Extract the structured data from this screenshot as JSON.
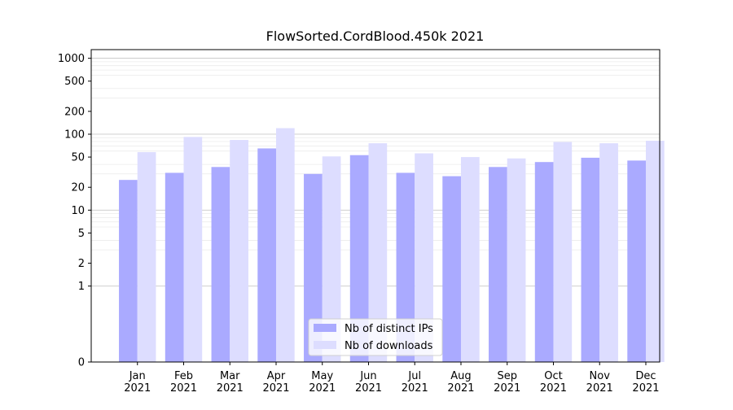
{
  "chart_data": {
    "type": "bar",
    "title": "FlowSorted.CordBlood.450k 2021",
    "xlabel": "",
    "ylabel": "",
    "y_scale": "symlog",
    "ylim": [
      0,
      1300
    ],
    "y_ticks": [
      0,
      1,
      2,
      5,
      10,
      20,
      50,
      100,
      200,
      500,
      1000
    ],
    "grid": true,
    "legend_position": "bottom-center",
    "categories": [
      "Jan\n2021",
      "Feb\n2021",
      "Mar\n2021",
      "Apr\n2021",
      "May\n2021",
      "Jun\n2021",
      "Jul\n2021",
      "Aug\n2021",
      "Sep\n2021",
      "Oct\n2021",
      "Nov\n2021",
      "Dec\n2021"
    ],
    "series": [
      {
        "name": "Nb of distinct IPs",
        "color": "#aaaaff",
        "values": [
          25,
          31,
          37,
          65,
          30,
          53,
          31,
          28,
          37,
          43,
          49,
          45
        ]
      },
      {
        "name": "Nb of downloads",
        "color": "#ddddff",
        "values": [
          58,
          92,
          84,
          120,
          51,
          76,
          56,
          50,
          48,
          79,
          76,
          82
        ]
      }
    ]
  }
}
